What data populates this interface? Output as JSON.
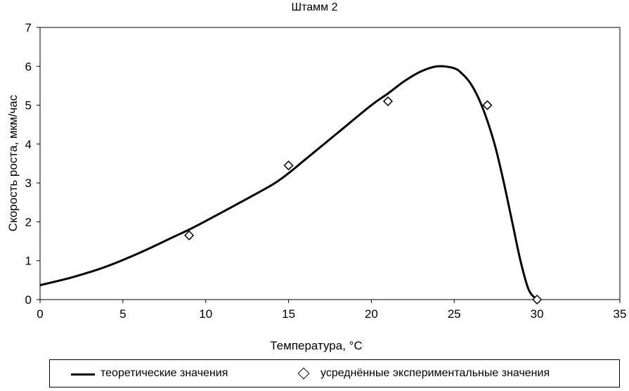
{
  "chart_data": {
    "type": "line",
    "title": "Штамм 2",
    "xlabel": "Температура, °С",
    "ylabel": "Скорость роста, мкм/час",
    "xlim": [
      0,
      35
    ],
    "ylim": [
      0,
      7
    ],
    "x_ticks": [
      0,
      5,
      10,
      15,
      20,
      25,
      30,
      35
    ],
    "y_ticks": [
      0,
      1,
      2,
      3,
      4,
      5,
      6,
      7
    ],
    "grid": false,
    "legend_position": "bottom",
    "series": [
      {
        "name": "теоретические значения",
        "style": "line",
        "color": "#000000",
        "x": [
          0,
          2,
          4,
          6,
          8,
          9,
          10,
          12,
          14,
          15,
          16,
          18,
          20,
          21,
          22,
          23,
          24,
          25,
          25.5,
          26,
          26.5,
          27,
          27.5,
          28,
          28.5,
          29,
          29.5,
          30
        ],
        "y": [
          0.37,
          0.58,
          0.85,
          1.2,
          1.6,
          1.8,
          2.02,
          2.48,
          2.95,
          3.25,
          3.6,
          4.3,
          5.0,
          5.3,
          5.62,
          5.87,
          6.0,
          5.95,
          5.8,
          5.55,
          5.15,
          4.6,
          3.9,
          3.0,
          2.0,
          1.0,
          0.25,
          0.0
        ]
      },
      {
        "name": "усреднённые экспериментальные значения",
        "style": "marker",
        "marker": "diamond",
        "color": "#000000",
        "x": [
          9,
          15,
          21,
          27,
          30
        ],
        "y": [
          1.65,
          3.45,
          5.1,
          5.0,
          0.0
        ]
      }
    ]
  }
}
